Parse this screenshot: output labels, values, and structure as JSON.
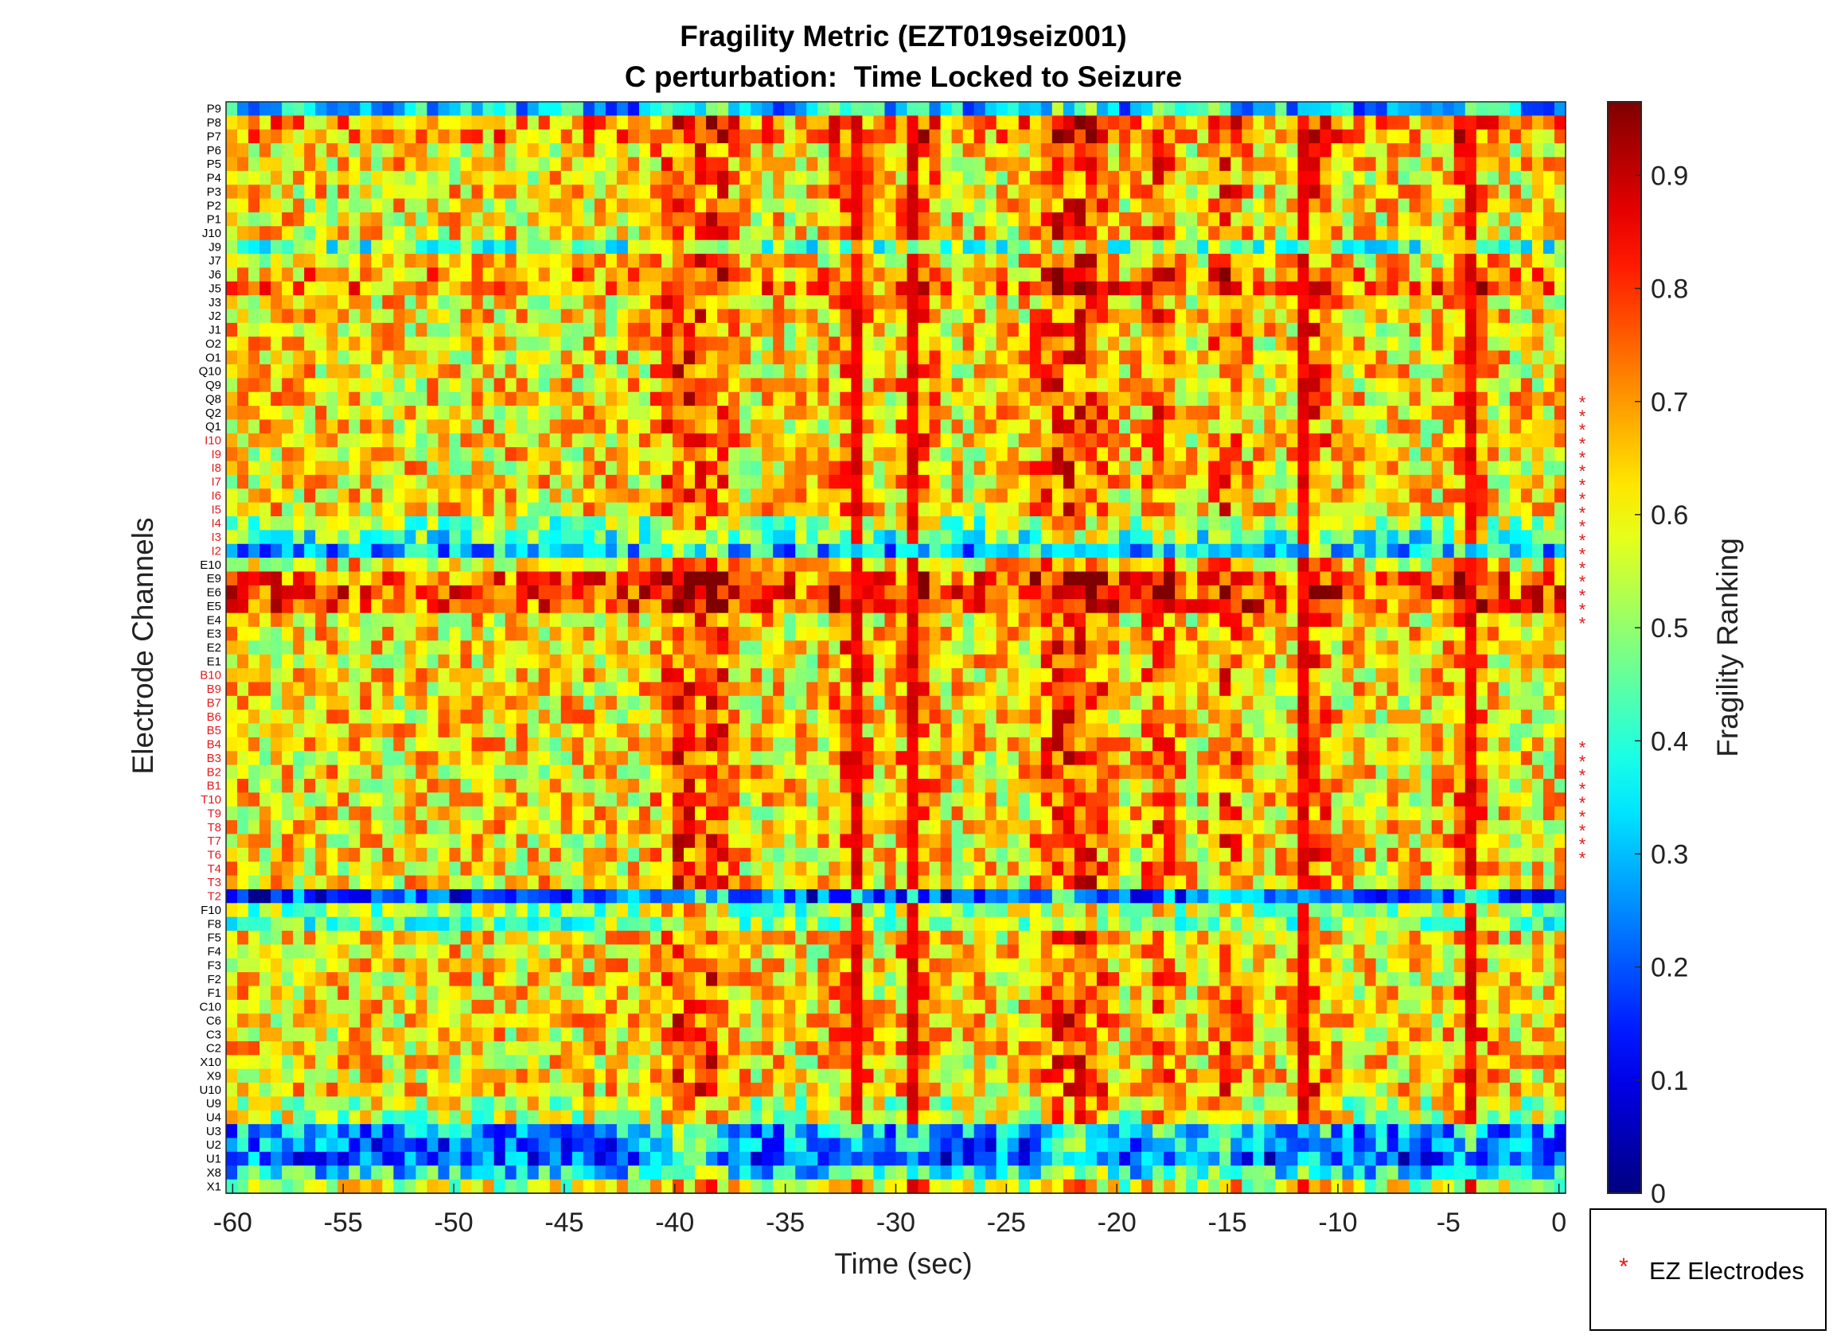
{
  "chart_data": {
    "type": "heatmap",
    "title": "Fragility Metric (EZT019seiz001)",
    "subtitle": "C perturbation:  Time Locked to Seizure",
    "xlabel": "Time (sec)",
    "ylabel": "Electrode Channels",
    "xlim": [
      -60.3,
      0.3
    ],
    "x_ticks": [
      -60,
      -55,
      -50,
      -45,
      -40,
      -35,
      -30,
      -25,
      -20,
      -15,
      -10,
      -5,
      0
    ],
    "x_tick_labels": [
      "-60",
      "-55",
      "-50",
      "-45",
      "-40",
      "-35",
      "-30",
      "-25",
      "-20",
      "-15",
      "-10",
      "-5",
      "0"
    ],
    "time_bins": 120,
    "channels": [
      "P9",
      "P8",
      "P7",
      "P6",
      "P5",
      "P4",
      "P3",
      "P2",
      "P1",
      "J10",
      "J9",
      "J7",
      "J6",
      "J5",
      "J3",
      "J2",
      "J1",
      "O2",
      "O1",
      "Q10",
      "Q9",
      "Q8",
      "Q2",
      "Q1",
      "I10",
      "I9",
      "I8",
      "I7",
      "I6",
      "I5",
      "I4",
      "I3",
      "I2",
      "E10",
      "E9",
      "E6",
      "E5",
      "E4",
      "E3",
      "E2",
      "E1",
      "B10",
      "B9",
      "B7",
      "B6",
      "B5",
      "B4",
      "B3",
      "B2",
      "B1",
      "T10",
      "T9",
      "T8",
      "T7",
      "T6",
      "T4",
      "T3",
      "T2",
      "F10",
      "F8",
      "F5",
      "F4",
      "F3",
      "F2",
      "F1",
      "C10",
      "C6",
      "C3",
      "C2",
      "X10",
      "X9",
      "U10",
      "U9",
      "U4",
      "U3",
      "U2",
      "U1",
      "X8",
      "X1"
    ],
    "ez_channels": [
      "I10",
      "I9",
      "I8",
      "I7",
      "I6",
      "I5",
      "I4",
      "I3",
      "I2",
      "B10",
      "B9",
      "B7",
      "B6",
      "B5",
      "B4",
      "B3",
      "B2",
      "B1",
      "T10",
      "T9",
      "T8",
      "T7",
      "T6",
      "T4",
      "T3",
      "T2"
    ],
    "ez_color": "#e31a1c",
    "ez_marker_rows": [
      "Q8",
      "Q2",
      "Q1",
      "I10",
      "I9",
      "I8",
      "I7",
      "I6",
      "I5",
      "I4",
      "I3",
      "I2",
      "E10",
      "E9",
      "E6",
      "E5",
      "E4",
      "B4",
      "B3",
      "B2",
      "B1",
      "T10",
      "T9",
      "T8",
      "T7",
      "T6"
    ],
    "low_rows": [
      "P9",
      "J9",
      "I2",
      "T2",
      "U3",
      "U2",
      "U1",
      "X8"
    ],
    "row_bias": {
      "P9": 0.3,
      "P8": 0.7,
      "P7": 0.7,
      "J9": 0.45,
      "J6": 0.68,
      "J5": 0.72,
      "I4": 0.5,
      "I3": 0.42,
      "I2": 0.3,
      "E9": 0.74,
      "E6": 0.78,
      "E5": 0.76,
      "T2": 0.18,
      "F10": 0.5,
      "F8": 0.48,
      "U9": 0.55,
      "U4": 0.55,
      "U3": 0.28,
      "U2": 0.24,
      "U1": 0.2,
      "X8": 0.35,
      "X1": 0.55
    },
    "high_columns_sec": [
      -40,
      -39,
      -38,
      -32,
      -29,
      -23,
      -22,
      -21,
      -18,
      -15,
      -11,
      -4
    ],
    "hot_stripes_sec": [
      -32,
      -29,
      -11.5,
      -4
    ],
    "colorbar": {
      "label": "Fragility Ranking",
      "colormap": "jet",
      "range": [
        0,
        0.965
      ],
      "ticks": [
        0,
        0.1,
        0.2,
        0.3,
        0.4,
        0.5,
        0.6,
        0.7,
        0.8,
        0.9
      ],
      "tick_labels": [
        "0",
        "0.1",
        "0.2",
        "0.3",
        "0.4",
        "0.5",
        "0.6",
        "0.7",
        "0.8",
        "0.9"
      ]
    },
    "legend": {
      "label": "EZ Electrodes",
      "marker": "*",
      "placement": "bottom-right"
    }
  }
}
